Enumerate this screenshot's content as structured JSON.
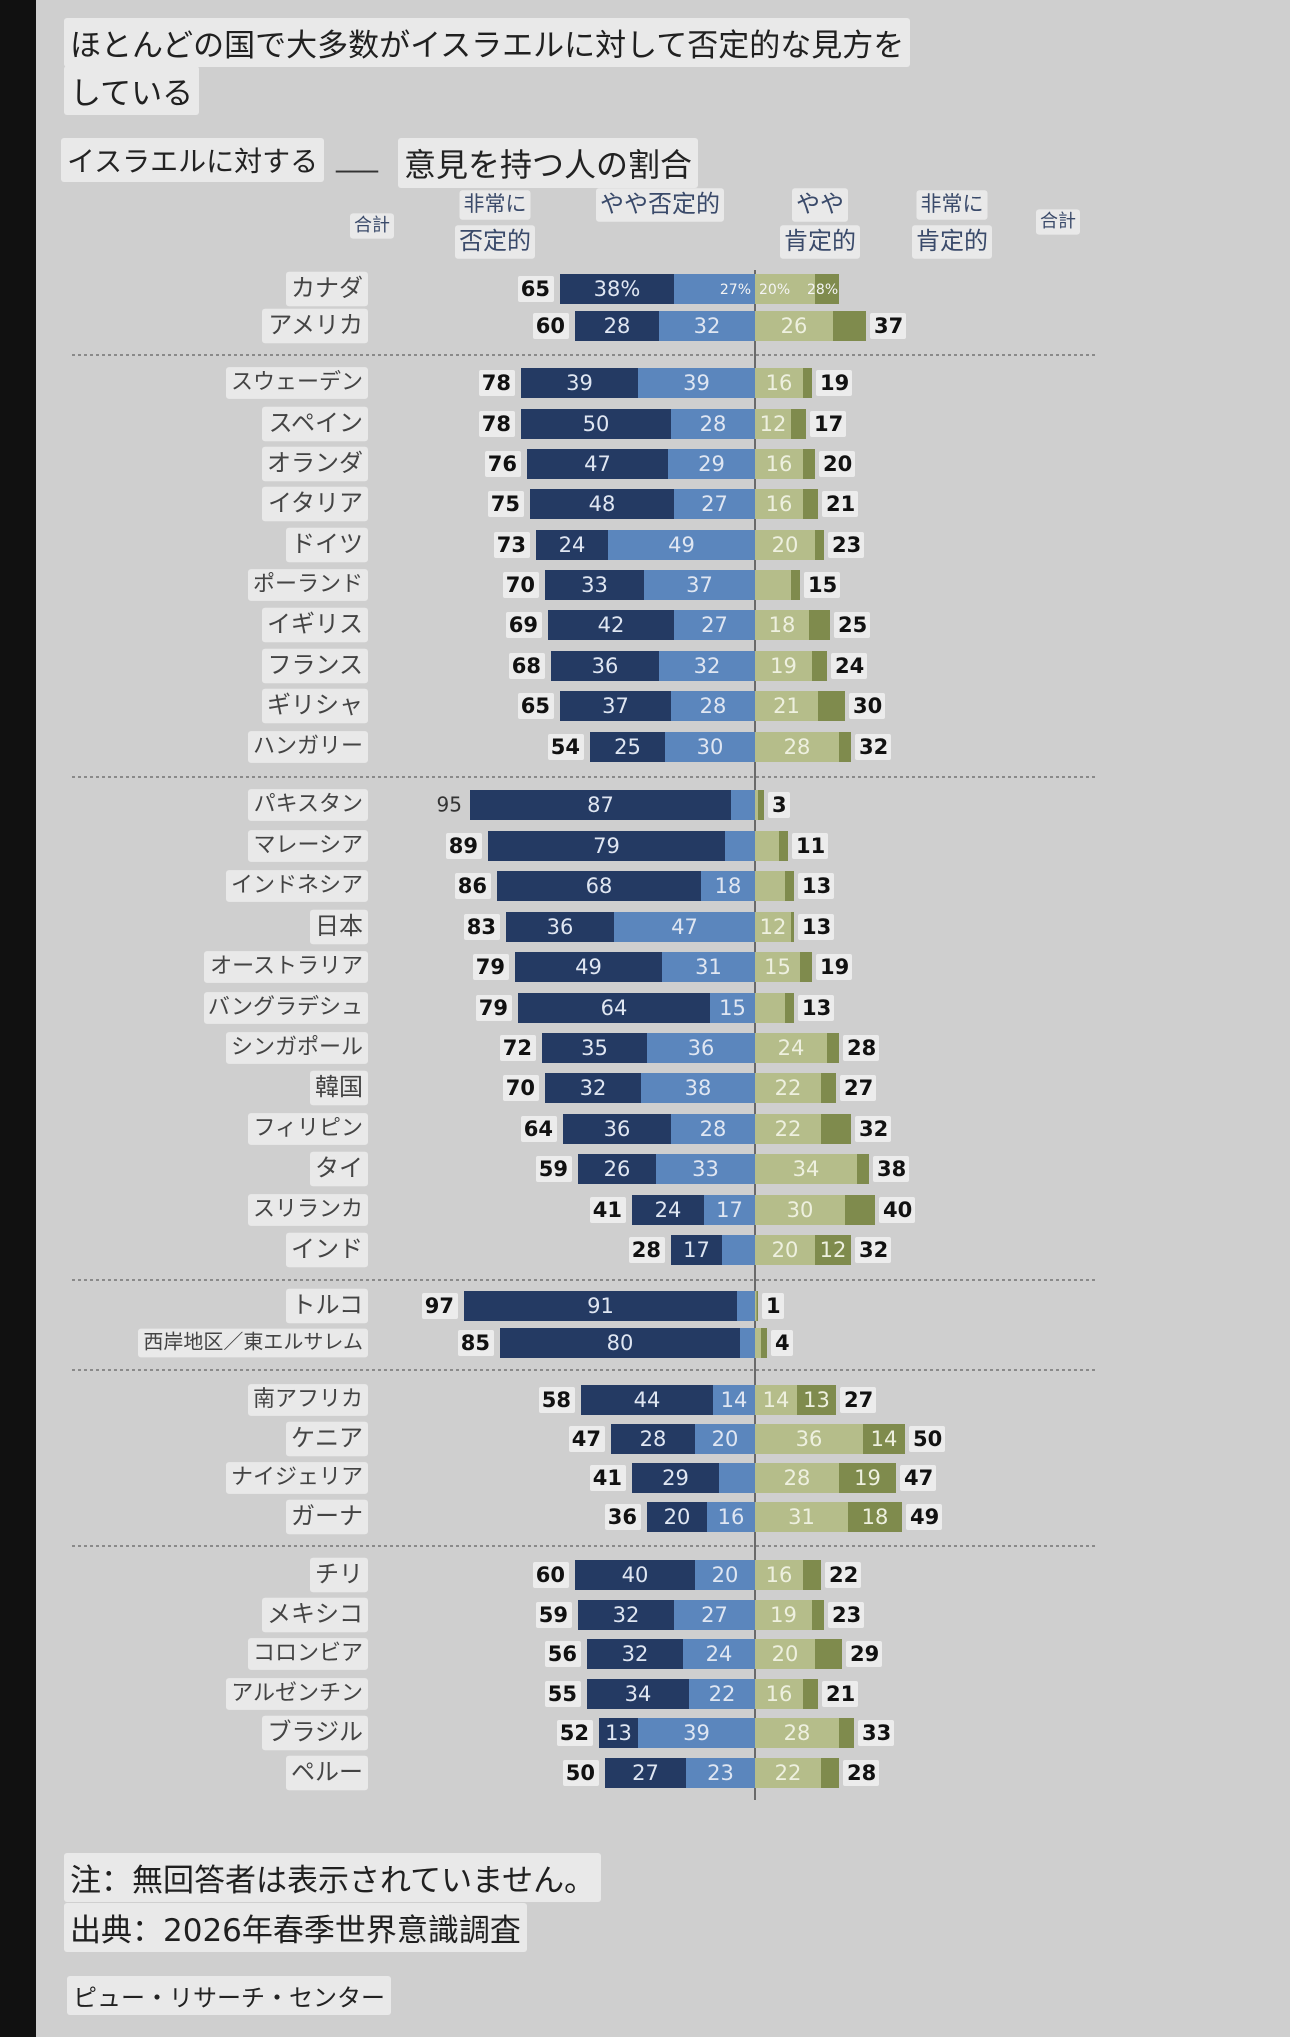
{
  "title_line1": "ほとんどの国で大多数がイスラエルに対して否定的な見方を",
  "title_line2": "している",
  "subtitle_left": "イスラエルに対する",
  "subtitle_blank": "___",
  "subtitle_right": "意見を持つ人の割合",
  "note": "注：無回答者は表示されていません。",
  "source": "出典：2026年春季世界意識調査",
  "publisher": "ピュー・リサーチ・センター",
  "chart_data": {
    "type": "bar",
    "stacking": "diverging",
    "headers": {
      "total_neg": "合計",
      "very_neg_1": "非常に",
      "very_neg_2": "否定的",
      "some_neg": "やや否定的",
      "some_pos_1": "やや",
      "some_pos_2": "肯定的",
      "very_pos_1": "非常に",
      "very_pos_2": "肯定的",
      "total_pos": "合計"
    },
    "colors": {
      "very_neg": "#243a63",
      "some_neg": "#5b86bd",
      "some_pos": "#b5bd8a",
      "very_pos": "#7f8b4d"
    },
    "groups": [
      {
        "rows": [
          {
            "country": "カナダ",
            "total_neg": 65,
            "very_neg": 38,
            "some_neg": 27,
            "some_pos": 20,
            "very_pos": 8,
            "total_pos": 28,
            "very_neg_label": "38%",
            "some_neg_label": "27%",
            "some_pos_label": "20%",
            "total_pos_label": "28%",
            "inline_total": true
          },
          {
            "country": "アメリカ",
            "total_neg": 60,
            "very_neg": 28,
            "some_neg": 32,
            "some_pos": 26,
            "very_pos": 11,
            "total_pos": 37,
            "very_neg_label": "28",
            "some_neg_label": "32",
            "some_pos_label": "26"
          }
        ]
      },
      {
        "rows": [
          {
            "country": "スウェーデン",
            "total_neg": 78,
            "very_neg": 39,
            "some_neg": 39,
            "some_pos": 16,
            "very_pos": 3,
            "total_pos": 19,
            "very_neg_label": "39",
            "some_neg_label": "39",
            "some_pos_label": "16"
          },
          {
            "country": "スペイン",
            "total_neg": 78,
            "very_neg": 50,
            "some_neg": 28,
            "some_pos": 12,
            "very_pos": 5,
            "total_pos": 17,
            "very_neg_label": "50",
            "some_neg_label": "28",
            "some_pos_label": "12"
          },
          {
            "country": "オランダ",
            "total_neg": 76,
            "very_neg": 47,
            "some_neg": 29,
            "some_pos": 16,
            "very_pos": 4,
            "total_pos": 20,
            "very_neg_label": "47",
            "some_neg_label": "29",
            "some_pos_label": "16"
          },
          {
            "country": "イタリア",
            "total_neg": 75,
            "very_neg": 48,
            "some_neg": 27,
            "some_pos": 16,
            "very_pos": 5,
            "total_pos": 21,
            "very_neg_label": "48",
            "some_neg_label": "27",
            "some_pos_label": "16"
          },
          {
            "country": "ドイツ",
            "total_neg": 73,
            "very_neg": 24,
            "some_neg": 49,
            "some_pos": 20,
            "very_pos": 3,
            "total_pos": 23,
            "very_neg_label": "24",
            "some_neg_label": "49",
            "some_pos_label": "20"
          },
          {
            "country": "ポーランド",
            "total_neg": 70,
            "very_neg": 33,
            "some_neg": 37,
            "some_pos": 12,
            "very_pos": 3,
            "total_pos": 15,
            "very_neg_label": "33",
            "some_neg_label": "37",
            "some_pos_label": ""
          },
          {
            "country": "イギリス",
            "total_neg": 69,
            "very_neg": 42,
            "some_neg": 27,
            "some_pos": 18,
            "very_pos": 7,
            "total_pos": 25,
            "very_neg_label": "42",
            "some_neg_label": "27",
            "some_pos_label": "18"
          },
          {
            "country": "フランス",
            "total_neg": 68,
            "very_neg": 36,
            "some_neg": 32,
            "some_pos": 19,
            "very_pos": 5,
            "total_pos": 24,
            "very_neg_label": "36",
            "some_neg_label": "32",
            "some_pos_label": "19"
          },
          {
            "country": "ギリシャ",
            "total_neg": 65,
            "very_neg": 37,
            "some_neg": 28,
            "some_pos": 21,
            "very_pos": 9,
            "total_pos": 30,
            "very_neg_label": "37",
            "some_neg_label": "28",
            "some_pos_label": "21"
          },
          {
            "country": "ハンガリー",
            "total_neg": 54,
            "very_neg": 25,
            "some_neg": 30,
            "some_pos": 28,
            "very_pos": 4,
            "total_pos": 32,
            "very_neg_label": "25",
            "some_neg_label": "30",
            "some_pos_label": "28"
          }
        ]
      },
      {
        "rows": [
          {
            "country": "パキスタン",
            "total_neg": 95,
            "very_neg": 87,
            "some_neg": 8,
            "some_pos": 1,
            "very_pos": 2,
            "total_pos": 3,
            "very_neg_label": "87",
            "some_neg_label": "",
            "some_pos_label": "",
            "inline_total": true
          },
          {
            "country": "マレーシア",
            "total_neg": 89,
            "very_neg": 79,
            "some_neg": 10,
            "some_pos": 8,
            "very_pos": 3,
            "total_pos": 11,
            "very_neg_label": "79",
            "some_neg_label": "",
            "some_pos_label": ""
          },
          {
            "country": "インドネシア",
            "total_neg": 86,
            "very_neg": 68,
            "some_neg": 18,
            "some_pos": 10,
            "very_pos": 3,
            "total_pos": 13,
            "very_neg_label": "68",
            "some_neg_label": "18",
            "some_pos_label": ""
          },
          {
            "country": "日本",
            "total_neg": 83,
            "very_neg": 36,
            "some_neg": 47,
            "some_pos": 12,
            "very_pos": 1,
            "total_pos": 13,
            "very_neg_label": "36",
            "some_neg_label": "47",
            "some_pos_label": "12"
          },
          {
            "country": "オーストラリア",
            "total_neg": 79,
            "very_neg": 49,
            "some_neg": 31,
            "some_pos": 15,
            "very_pos": 4,
            "total_pos": 19,
            "very_neg_label": "49",
            "some_neg_label": "31",
            "some_pos_label": "15"
          },
          {
            "country": "バングラデシュ",
            "total_neg": 79,
            "very_neg": 64,
            "some_neg": 15,
            "some_pos": 10,
            "very_pos": 3,
            "total_pos": 13,
            "very_neg_label": "64",
            "some_neg_label": "15",
            "some_pos_label": ""
          },
          {
            "country": "シンガポール",
            "total_neg": 72,
            "very_neg": 35,
            "some_neg": 36,
            "some_pos": 24,
            "very_pos": 4,
            "total_pos": 28,
            "very_neg_label": "35",
            "some_neg_label": "36",
            "some_pos_label": "24"
          },
          {
            "country": "韓国",
            "total_neg": 70,
            "very_neg": 32,
            "some_neg": 38,
            "some_pos": 22,
            "very_pos": 5,
            "total_pos": 27,
            "very_neg_label": "32",
            "some_neg_label": "38",
            "some_pos_label": "22"
          },
          {
            "country": "フィリピン",
            "total_neg": 64,
            "very_neg": 36,
            "some_neg": 28,
            "some_pos": 22,
            "very_pos": 10,
            "total_pos": 32,
            "very_neg_label": "36",
            "some_neg_label": "28",
            "some_pos_label": "22"
          },
          {
            "country": "タイ",
            "total_neg": 59,
            "very_neg": 26,
            "some_neg": 33,
            "some_pos": 34,
            "very_pos": 4,
            "total_pos": 38,
            "very_neg_label": "26",
            "some_neg_label": "33",
            "some_pos_label": "34"
          },
          {
            "country": "スリランカ",
            "total_neg": 41,
            "very_neg": 24,
            "some_neg": 17,
            "some_pos": 30,
            "very_pos": 10,
            "total_pos": 40,
            "very_neg_label": "24",
            "some_neg_label": "17",
            "some_pos_label": "30"
          },
          {
            "country": "インド",
            "total_neg": 28,
            "very_neg": 17,
            "some_neg": 11,
            "some_pos": 20,
            "very_pos": 12,
            "total_pos": 32,
            "very_neg_label": "17",
            "some_neg_label": "",
            "some_pos_label": "20",
            "very_pos_label": "12"
          }
        ]
      },
      {
        "rows": [
          {
            "country": "トルコ",
            "total_neg": 97,
            "very_neg": 91,
            "some_neg": 6,
            "some_pos": 0.5,
            "very_pos": 0.5,
            "total_pos": 1,
            "very_neg_label": "91",
            "some_neg_label": "",
            "some_pos_label": ""
          },
          {
            "country": "西岸地区／東エルサレム",
            "total_neg": 85,
            "very_neg": 80,
            "some_neg": 5,
            "some_pos": 2,
            "very_pos": 2,
            "total_pos": 4,
            "very_neg_label": "80",
            "some_neg_label": "",
            "some_pos_label": ""
          }
        ]
      },
      {
        "rows": [
          {
            "country": "南アフリカ",
            "total_neg": 58,
            "very_neg": 44,
            "some_neg": 14,
            "some_pos": 14,
            "very_pos": 13,
            "total_pos": 27,
            "very_neg_label": "44",
            "some_neg_label": "14",
            "some_pos_label": "14",
            "very_pos_label": "13"
          },
          {
            "country": "ケニア",
            "total_neg": 47,
            "very_neg": 28,
            "some_neg": 20,
            "some_pos": 36,
            "very_pos": 14,
            "total_pos": 50,
            "very_neg_label": "28",
            "some_neg_label": "20",
            "some_pos_label": "36",
            "very_pos_label": "14"
          },
          {
            "country": "ナイジェリア",
            "total_neg": 41,
            "very_neg": 29,
            "some_neg": 12,
            "some_pos": 28,
            "very_pos": 19,
            "total_pos": 47,
            "very_neg_label": "29",
            "some_neg_label": "",
            "some_pos_label": "28",
            "very_pos_label": "19"
          },
          {
            "country": "ガーナ",
            "total_neg": 36,
            "very_neg": 20,
            "some_neg": 16,
            "some_pos": 31,
            "very_pos": 18,
            "total_pos": 49,
            "very_neg_label": "20",
            "some_neg_label": "16",
            "some_pos_label": "31",
            "very_pos_label": "18"
          }
        ]
      },
      {
        "rows": [
          {
            "country": "チリ",
            "total_neg": 60,
            "very_neg": 40,
            "some_neg": 20,
            "some_pos": 16,
            "very_pos": 6,
            "total_pos": 22,
            "very_neg_label": "40",
            "some_neg_label": "20",
            "some_pos_label": "16"
          },
          {
            "country": "メキシコ",
            "total_neg": 59,
            "very_neg": 32,
            "some_neg": 27,
            "some_pos": 19,
            "very_pos": 4,
            "total_pos": 23,
            "very_neg_label": "32",
            "some_neg_label": "27",
            "some_pos_label": "19"
          },
          {
            "country": "コロンビア",
            "total_neg": 56,
            "very_neg": 32,
            "some_neg": 24,
            "some_pos": 20,
            "very_pos": 9,
            "total_pos": 29,
            "very_neg_label": "32",
            "some_neg_label": "24",
            "some_pos_label": "20"
          },
          {
            "country": "アルゼンチン",
            "total_neg": 55,
            "very_neg": 34,
            "some_neg": 22,
            "some_pos": 16,
            "very_pos": 5,
            "total_pos": 21,
            "very_neg_label": "34",
            "some_neg_label": "22",
            "some_pos_label": "16"
          },
          {
            "country": "ブラジル",
            "total_neg": 52,
            "very_neg": 13,
            "some_neg": 39,
            "some_pos": 28,
            "very_pos": 5,
            "total_pos": 33,
            "very_neg_label": "13",
            "some_neg_label": "39",
            "some_pos_label": "28"
          },
          {
            "country": "ペルー",
            "total_neg": 50,
            "very_neg": 27,
            "some_neg": 23,
            "some_pos": 22,
            "very_pos": 6,
            "total_pos": 28,
            "very_neg_label": "27",
            "some_neg_label": "23",
            "some_pos_label": "22"
          }
        ]
      }
    ]
  }
}
